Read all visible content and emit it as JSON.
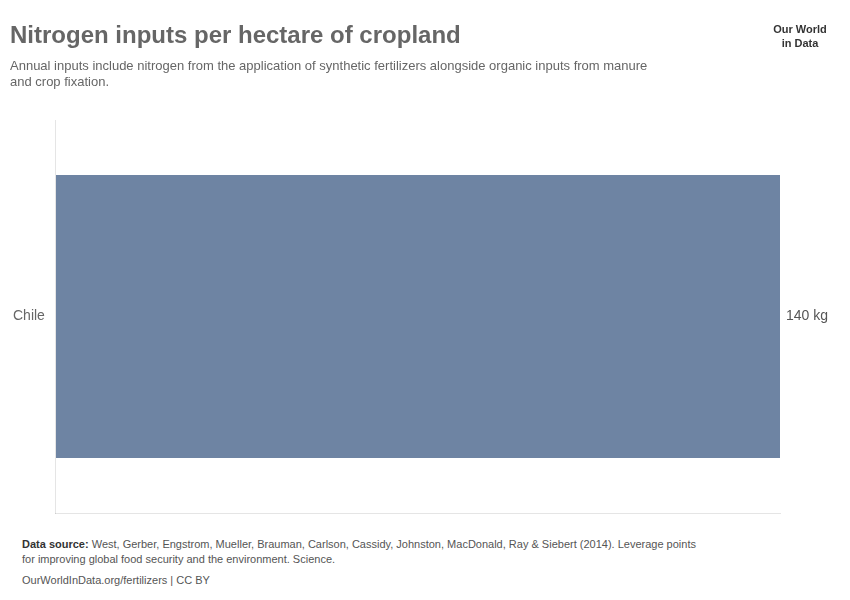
{
  "chart_data": {
    "type": "bar",
    "orientation": "horizontal",
    "title": "Nitrogen inputs per hectare of cropland",
    "subtitle": "Annual inputs include nitrogen from the application of synthetic fertilizers alongside organic inputs from manure\nand crop fixation.",
    "categories": [
      "Chile"
    ],
    "values": [
      140
    ],
    "value_labels": [
      "140 kg"
    ],
    "data_labels": true,
    "color": "#6e84a3",
    "xlim": [
      0,
      140
    ],
    "grid": false,
    "tick_labels": "y",
    "source_label": "Data source:",
    "source": "West, Gerber, Engstrom, Mueller, Brauman, Carlson, Cassidy, Johnston, MacDonald, Ray & Siebert (2014). Leverage points\nfor improving global food security and the environment. Science.",
    "credit": "OurWorldInData.org/fertilizers | CC BY",
    "logo_text": [
      "Our World",
      "in Data"
    ]
  }
}
